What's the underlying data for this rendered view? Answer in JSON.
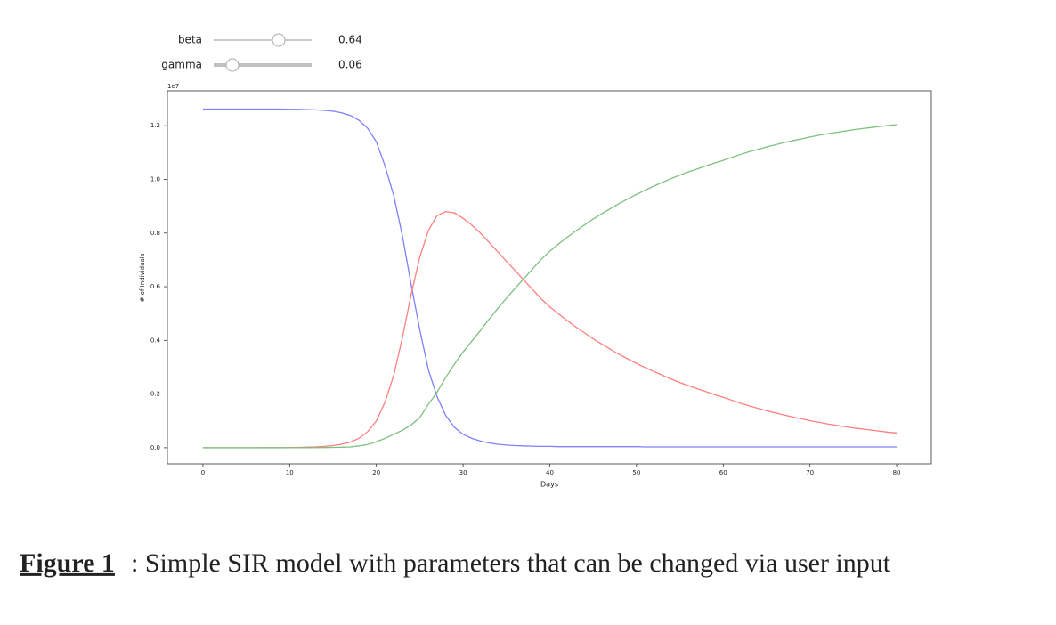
{
  "sliders": [
    {
      "label": "beta",
      "value": 0.64
    },
    {
      "label": "gamma",
      "value": 0.06
    }
  ],
  "chart_data": {
    "type": "line",
    "y_offset_label": "1e7",
    "xlabel": "Days",
    "ylabel": "# of Individuals",
    "xlim": [
      -4.1,
      84
    ],
    "ylim": [
      -0.06,
      1.33
    ],
    "xticks": [
      0,
      10,
      20,
      30,
      40,
      50,
      60,
      70,
      80
    ],
    "yticks": [
      {
        "value": 0,
        "label": "0.0"
      },
      0.2,
      0.4,
      0.6,
      0.8,
      {
        "value": 1,
        "label": "1.0"
      },
      1.2
    ],
    "x": [
      0,
      1,
      2,
      3,
      4,
      5,
      6,
      7,
      8,
      9,
      10,
      11,
      12,
      13,
      14,
      15,
      16,
      17,
      18,
      19,
      20,
      21,
      22,
      23,
      24,
      25,
      26,
      27,
      28,
      29,
      30,
      31,
      32,
      33,
      34,
      35,
      36,
      37,
      38,
      39,
      40,
      41,
      42,
      43,
      44,
      45,
      46,
      47,
      48,
      49,
      50,
      51,
      52,
      53,
      54,
      55,
      56,
      57,
      58,
      59,
      60,
      61,
      62,
      63,
      64,
      65,
      66,
      67,
      68,
      69,
      70,
      71,
      72,
      73,
      74,
      75,
      76,
      77,
      78,
      79,
      80
    ],
    "series": [
      {
        "color": "#7f7fff",
        "values": [
          1.262,
          1.262,
          1.262,
          1.262,
          1.262,
          1.262,
          1.262,
          1.262,
          1.262,
          1.262,
          1.261,
          1.261,
          1.26,
          1.259,
          1.257,
          1.254,
          1.248,
          1.238,
          1.22,
          1.19,
          1.14,
          1.05,
          0.94,
          0.79,
          0.61,
          0.44,
          0.29,
          0.19,
          0.12,
          0.076,
          0.05,
          0.035,
          0.025,
          0.018,
          0.013,
          0.01,
          0.008,
          0.007,
          0.006,
          0.005,
          0.005,
          0.004,
          0.004,
          0.004,
          0.004,
          0.004,
          0.004,
          0.004,
          0.004,
          0.004,
          0.004,
          0.003,
          0.003,
          0.003,
          0.003,
          0.003,
          0.003,
          0.003,
          0.003,
          0.003,
          0.003,
          0.003,
          0.003,
          0.003,
          0.003,
          0.003,
          0.003,
          0.003,
          0.003,
          0.003,
          0.003,
          0.003,
          0.003,
          0.003,
          0.003,
          0.003,
          0.003,
          0.003,
          0.003,
          0.003,
          0.003
        ]
      },
      {
        "color": "#ff7f7f",
        "values": [
          0.0001,
          0.0001,
          0.0001,
          0.0001,
          0.0001,
          0.0001,
          0.0002,
          0.0003,
          0.0004,
          0.0006,
          0.0009,
          0.0014,
          0.002,
          0.003,
          0.005,
          0.008,
          0.013,
          0.021,
          0.035,
          0.06,
          0.1,
          0.17,
          0.27,
          0.41,
          0.57,
          0.71,
          0.81,
          0.865,
          0.88,
          0.875,
          0.855,
          0.83,
          0.8,
          0.765,
          0.73,
          0.695,
          0.66,
          0.625,
          0.59,
          0.555,
          0.525,
          0.499,
          0.474,
          0.45,
          0.428,
          0.406,
          0.386,
          0.367,
          0.348,
          0.331,
          0.314,
          0.299,
          0.284,
          0.27,
          0.256,
          0.243,
          0.231,
          0.22,
          0.209,
          0.198,
          0.188,
          0.177,
          0.166,
          0.156,
          0.147,
          0.138,
          0.13,
          0.122,
          0.115,
          0.108,
          0.101,
          0.095,
          0.089,
          0.084,
          0.079,
          0.074,
          0.07,
          0.066,
          0.062,
          0.058,
          0.055
        ]
      },
      {
        "color": "#7fbf7f",
        "values": [
          0,
          0,
          0,
          0,
          0,
          0,
          0,
          0,
          0,
          0,
          0.0001,
          0.0002,
          0.0003,
          0.0005,
          0.0008,
          0.0013,
          0.002,
          0.003,
          0.007,
          0.012,
          0.022,
          0.035,
          0.05,
          0.065,
          0.085,
          0.112,
          0.162,
          0.207,
          0.262,
          0.311,
          0.357,
          0.397,
          0.437,
          0.479,
          0.519,
          0.557,
          0.594,
          0.63,
          0.666,
          0.702,
          0.732,
          0.759,
          0.784,
          0.808,
          0.83,
          0.852,
          0.872,
          0.891,
          0.91,
          0.927,
          0.944,
          0.96,
          0.975,
          0.989,
          1.003,
          1.016,
          1.028,
          1.039,
          1.05,
          1.061,
          1.071,
          1.082,
          1.093,
          1.103,
          1.112,
          1.121,
          1.129,
          1.137,
          1.144,
          1.151,
          1.158,
          1.164,
          1.17,
          1.175,
          1.18,
          1.185,
          1.189,
          1.193,
          1.197,
          1.201,
          1.204
        ]
      }
    ]
  },
  "caption": {
    "label": "Figure 1",
    "text": ": Simple SIR model with parameters that can be changed via user input"
  }
}
